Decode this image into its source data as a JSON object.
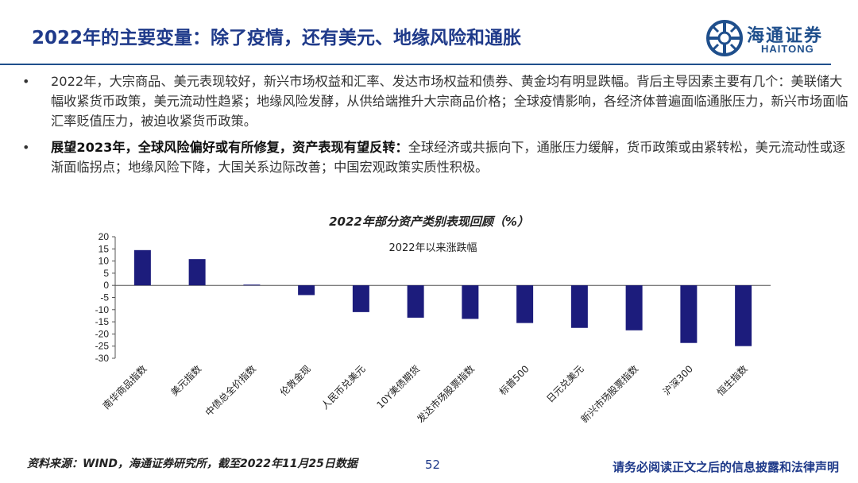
{
  "header": {
    "title": "2022年的主要变量：除了疫情，还有美元、地缘风险和通胀",
    "logo_cn": "海通证券",
    "logo_en": "HAITONG",
    "brand_color": "#1f3a8a"
  },
  "bullets": [
    {
      "marker": "•",
      "bold": "",
      "text": "2022年，大宗商品、美元表现较好，新兴市场权益和汇率、发达市场权益和债券、黄金均有明显跌幅。背后主导因素主要有几个：美联储大幅收紧货币政策，美元流动性趋紧；地缘风险发酵，从供给端推升大宗商品价格；全球疫情影响，各经济体普遍面临通胀压力，新兴市场面临汇率贬值压力，被迫收紧货币政策。"
    },
    {
      "marker": "•",
      "bold": "展望2023年，全球风险偏好或有所修复，资产表现有望反转：",
      "text": "全球经济或共振向下，通胀压力缓解，货币政策或由紧转松，美元流动性或逐渐面临拐点；地缘风险下降，大国关系边际改善；中国宏观政策实质性积极。"
    }
  ],
  "chart_data": {
    "type": "bar",
    "title": "2022年部分资产类别表现回顾（%）",
    "legend": "2022年以来涨跌幅",
    "bar_color": "#1c1c7c",
    "categories": [
      "南华商品指数",
      "美元指数",
      "中债总全价指数",
      "伦敦金现",
      "人民币兑美元",
      "10Y美债期货",
      "发达市场股票指数",
      "标普500",
      "日元兑美元",
      "新兴市场股票指数",
      "沪深300",
      "恒生指数"
    ],
    "values": [
      14.5,
      10.8,
      0.3,
      -4.0,
      -11.0,
      -13.3,
      -13.8,
      -15.5,
      -17.5,
      -18.5,
      -23.7,
      -25.0
    ],
    "ylim": [
      -30,
      20
    ],
    "yticks": [
      20,
      15,
      10,
      5,
      0,
      -5,
      -10,
      -15,
      -20,
      -25,
      -30
    ]
  },
  "footer": {
    "source": "资料来源：WIND，海通证券研究所，截至2022年11月25日数据",
    "page": "52",
    "disclaimer": "请务必阅读正文之后的信息披露和法律声明"
  }
}
